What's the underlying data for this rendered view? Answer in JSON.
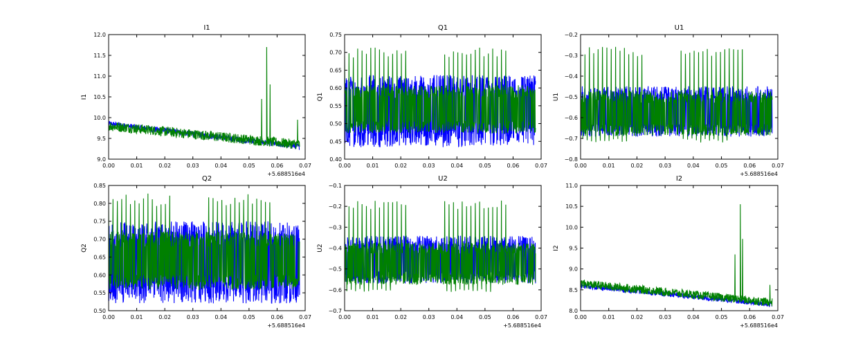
{
  "colors": {
    "series_blue": "#0000ff",
    "series_green": "#008000",
    "axes": "#000000"
  },
  "chart_data": [
    {
      "type": "line",
      "title": "I1",
      "ylabel": "I1",
      "xlim": [
        0.0,
        0.07
      ],
      "ylim": [
        9.0,
        12.0
      ],
      "xticks": [
        "0.00",
        "0.01",
        "0.02",
        "0.03",
        "0.04",
        "0.05",
        "0.06",
        "0.07"
      ],
      "yticks": [
        "9.0",
        "9.5",
        "10.0",
        "10.5",
        "11.0",
        "11.5",
        "12.0"
      ],
      "x_offset_label": "+5.688516e4",
      "series": [
        {
          "color": "#0000ff",
          "x_range": [
            0.0,
            0.068
          ],
          "start": 9.85,
          "end": 9.3,
          "amplitude": 0.07,
          "spikes": []
        },
        {
          "color": "#008000",
          "x_range": [
            0.0,
            0.068
          ],
          "start": 9.8,
          "end": 9.35,
          "amplitude": 0.12,
          "spikes": [
            [
              0.0545,
              10.45
            ],
            [
              0.0563,
              11.7
            ],
            [
              0.0575,
              10.8
            ],
            [
              0.0673,
              9.95
            ]
          ]
        }
      ]
    },
    {
      "type": "line",
      "title": "Q1",
      "ylabel": "Q1",
      "xlim": [
        0.0,
        0.07
      ],
      "ylim": [
        0.4,
        0.75
      ],
      "xticks": [
        "0.00",
        "0.01",
        "0.02",
        "0.03",
        "0.04",
        "0.05",
        "0.06",
        "0.07"
      ],
      "yticks": [
        "0.40",
        "0.45",
        "0.50",
        "0.55",
        "0.60",
        "0.65",
        "0.70",
        "0.75"
      ],
      "series": [
        {
          "color": "#0000ff",
          "x_range": [
            0.0,
            0.068
          ],
          "low": 0.46,
          "high": 0.61,
          "spike": 0.0
        },
        {
          "color": "#008000",
          "x_range": [
            0.0,
            0.068
          ],
          "low": 0.49,
          "high": 0.59,
          "spike": 0.7,
          "spike_period": 0.00155
        }
      ]
    },
    {
      "type": "line",
      "title": "U1",
      "ylabel": "U1",
      "xlim": [
        0.0,
        0.07
      ],
      "ylim": [
        -0.8,
        -0.2
      ],
      "xticks": [
        "0.00",
        "0.01",
        "0.02",
        "0.03",
        "0.04",
        "0.05",
        "0.06",
        "0.07"
      ],
      "yticks": [
        "−0.8",
        "−0.7",
        "−0.6",
        "−0.5",
        "−0.4",
        "−0.3",
        "−0.2"
      ],
      "x_offset_label": "+5.688516e4",
      "series": [
        {
          "color": "#0000ff",
          "x_range": [
            0.0,
            0.068
          ],
          "low": -0.66,
          "high": -0.48,
          "spike": 0.0
        },
        {
          "color": "#008000",
          "x_range": [
            0.0,
            0.068
          ],
          "low": -0.66,
          "high": -0.5,
          "spike": -0.28,
          "spike_period": 0.00155,
          "dip": -0.71
        }
      ]
    },
    {
      "type": "line",
      "title": "Q2",
      "ylabel": "Q2",
      "xlim": [
        0.0,
        0.07
      ],
      "ylim": [
        0.5,
        0.85
      ],
      "xticks": [
        "0.00",
        "0.01",
        "0.02",
        "0.03",
        "0.04",
        "0.05",
        "0.06",
        "0.07"
      ],
      "yticks": [
        "0.50",
        "0.55",
        "0.60",
        "0.65",
        "0.70",
        "0.75",
        "0.80",
        "0.85"
      ],
      "x_offset_label": "+5.688516e4",
      "series": [
        {
          "color": "#0000ff",
          "x_range": [
            0.0,
            0.068
          ],
          "low": 0.55,
          "high": 0.72,
          "spike": 0.0
        },
        {
          "color": "#008000",
          "x_range": [
            0.0,
            0.068
          ],
          "low": 0.58,
          "high": 0.7,
          "spike": 0.81,
          "spike_period": 0.00155
        }
      ]
    },
    {
      "type": "line",
      "title": "U2",
      "ylabel": "U2",
      "xlim": [
        0.0,
        0.07
      ],
      "ylim": [
        -0.7,
        -0.1
      ],
      "xticks": [
        "0.00",
        "0.01",
        "0.02",
        "0.03",
        "0.04",
        "0.05",
        "0.06",
        "0.07"
      ],
      "yticks": [
        "−0.7",
        "−0.6",
        "−0.5",
        "−0.4",
        "−0.3",
        "−0.2",
        "−0.1"
      ],
      "x_offset_label": "+5.688516e4",
      "series": [
        {
          "color": "#0000ff",
          "x_range": [
            0.0,
            0.068
          ],
          "low": -0.54,
          "high": -0.37,
          "spike": 0.0
        },
        {
          "color": "#008000",
          "x_range": [
            0.0,
            0.068
          ],
          "low": -0.55,
          "high": -0.4,
          "spike": -0.19,
          "spike_period": 0.00155,
          "dip": -0.6
        }
      ]
    },
    {
      "type": "line",
      "title": "I2",
      "ylabel": "I2",
      "xlim": [
        0.0,
        0.07
      ],
      "ylim": [
        8.0,
        11.0
      ],
      "xticks": [
        "0.00",
        "0.01",
        "0.02",
        "0.03",
        "0.04",
        "0.05",
        "0.06",
        "0.07"
      ],
      "yticks": [
        "8.0",
        "8.5",
        "9.0",
        "9.5",
        "10.0",
        "10.5",
        "11.0"
      ],
      "x_offset_label": "+5.688516e4",
      "series": [
        {
          "color": "#0000ff",
          "x_range": [
            0.0,
            0.068
          ],
          "start": 8.6,
          "end": 8.15,
          "amplitude": 0.06,
          "spikes": []
        },
        {
          "color": "#008000",
          "x_range": [
            0.0,
            0.068
          ],
          "start": 8.65,
          "end": 8.2,
          "amplitude": 0.1,
          "spikes": [
            [
              0.0548,
              9.35
            ],
            [
              0.0567,
              10.55
            ],
            [
              0.0575,
              9.72
            ],
            [
              0.0672,
              8.62
            ]
          ]
        }
      ]
    }
  ]
}
